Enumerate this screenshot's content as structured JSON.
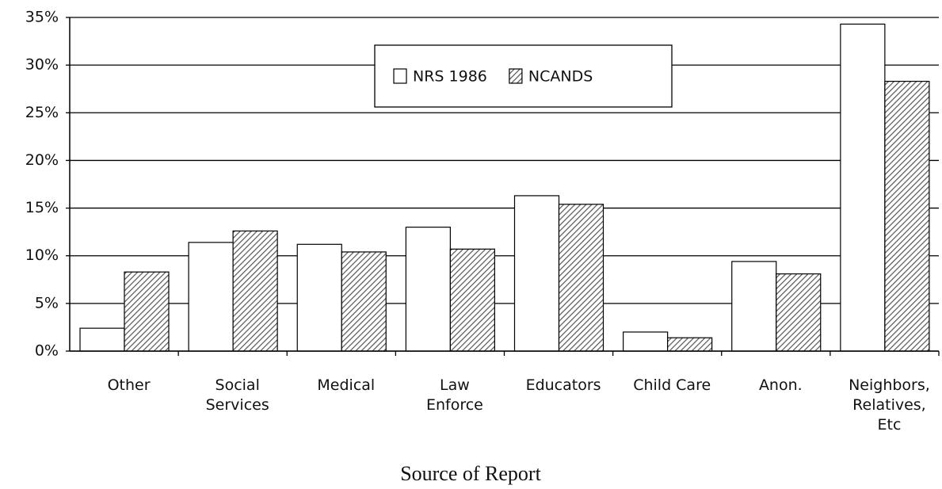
{
  "chart_data": {
    "type": "bar",
    "x_label": "Source of Report",
    "categories": [
      "Other",
      "Social\nServices",
      "Medical",
      "Law\nEnforce",
      "Educators",
      "Child Care",
      "Anon.",
      "Neighbors,\nRelatives,\nEtc"
    ],
    "series": [
      {
        "name": "NRS 1986",
        "color": "#ffffff",
        "hatch": false,
        "values": [
          2.4,
          11.4,
          11.2,
          13.0,
          16.3,
          2.0,
          9.4,
          34.3
        ]
      },
      {
        "name": "NCANDS",
        "color": "#555555",
        "hatch": true,
        "values": [
          8.3,
          12.6,
          10.4,
          10.7,
          15.4,
          1.4,
          8.1,
          28.3
        ]
      }
    ],
    "ylim": [
      0,
      35
    ],
    "yticks": [
      {
        "value": 0,
        "label": "0%"
      },
      {
        "value": 5,
        "label": "5%"
      },
      {
        "value": 10,
        "label": "10%"
      },
      {
        "value": 15,
        "label": "15%"
      },
      {
        "value": 20,
        "label": "20%"
      },
      {
        "value": 25,
        "label": "25%"
      },
      {
        "value": 30,
        "label": "30%"
      },
      {
        "value": 35,
        "label": "35%"
      }
    ],
    "grid": true,
    "legend": "top"
  }
}
